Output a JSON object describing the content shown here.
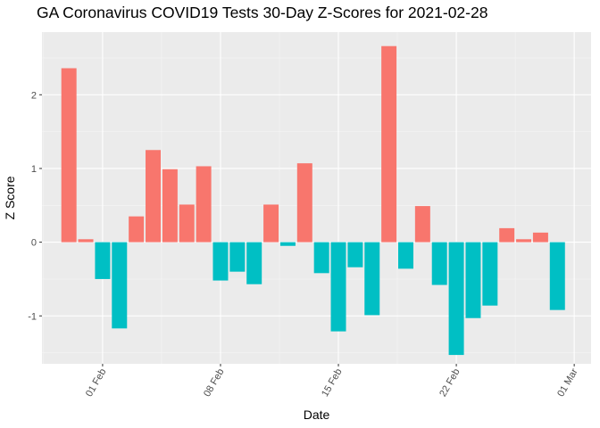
{
  "chart_data": {
    "type": "bar",
    "title": "GA Coronavirus COVID19 Tests 30-Day Z-Scores for 2021-02-28",
    "xlabel": "Date",
    "ylabel": "Z Score",
    "ylim": [
      -1.65,
      2.85
    ],
    "y_ticks": [
      -1,
      0,
      1,
      2
    ],
    "x_ticks": [
      {
        "day": 2,
        "label": "01 Feb"
      },
      {
        "day": 9,
        "label": "08 Feb"
      },
      {
        "day": 16,
        "label": "15 Feb"
      },
      {
        "day": 23,
        "label": "22 Feb"
      },
      {
        "day": 30,
        "label": "01 Mar"
      }
    ],
    "x_range_days": [
      -1.6,
      31.0
    ],
    "start_date": "2021-01-30",
    "end_date": "2021-02-28",
    "colors": {
      "positive": "#f8766d",
      "negative": "#00bfc4",
      "panel": "#ebebeb",
      "grid_major": "#ffffff",
      "grid_minor": "#f5f5f5"
    },
    "values": [
      2.36,
      0.04,
      -0.5,
      -1.17,
      0.35,
      1.25,
      0.99,
      0.51,
      1.03,
      -0.52,
      -0.4,
      -0.57,
      0.51,
      -0.05,
      1.07,
      -0.42,
      -1.21,
      -0.34,
      -0.99,
      2.66,
      -0.36,
      0.49,
      -0.58,
      -1.53,
      -1.03,
      -0.86,
      0.19,
      0.04,
      0.13,
      -0.92
    ]
  }
}
